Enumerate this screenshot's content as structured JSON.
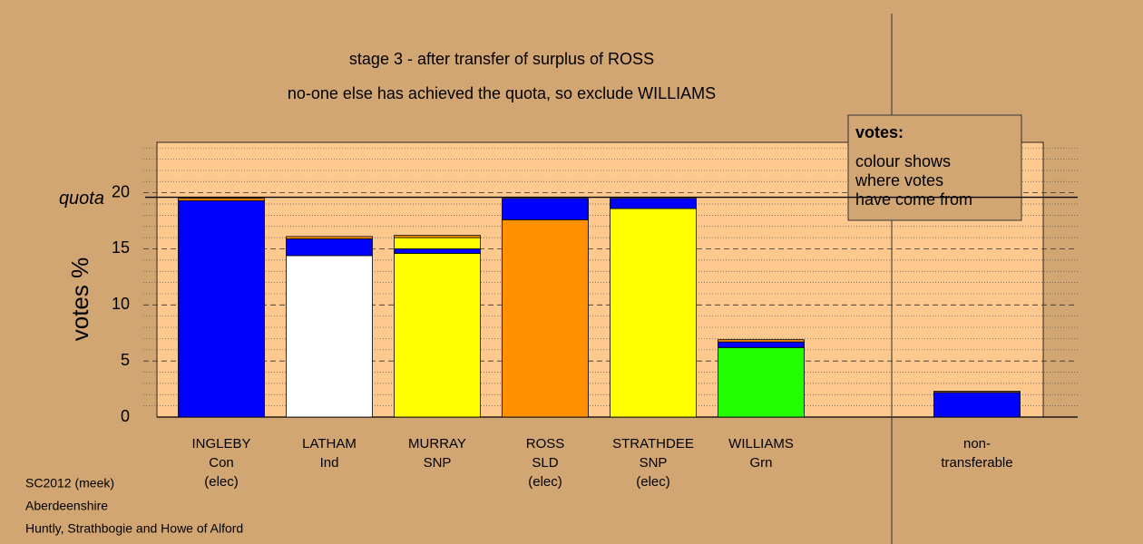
{
  "chart_data": {
    "type": "stacked_bar",
    "title": "stage 3 - after transfer of surplus of ROSS",
    "subtitle": "no-one else has achieved the quota, so exclude WILLIAMS",
    "y_label": "votes %",
    "quota_label": "quota",
    "quota": 19.6,
    "categories": [
      [
        "INGLEBY",
        "Con",
        "(elec)"
      ],
      [
        "LATHAM",
        "Ind"
      ],
      [
        "MURRAY",
        "SNP"
      ],
      [
        "ROSS",
        "SLD",
        "(elec)"
      ],
      [
        "STRATHDEE",
        "SNP",
        "(elec)"
      ],
      [
        "WILLIAMS",
        "Grn"
      ],
      [
        "non-",
        "transferable"
      ]
    ],
    "series": [
      {
        "colors": [
          "#0000ff",
          "#ffffff",
          "#ffff00",
          "#ff9000",
          "#ffff00",
          "#22ff00",
          "#0000ff"
        ],
        "values": [
          19.3,
          14.4,
          14.6,
          17.6,
          18.6,
          6.2,
          0
        ]
      },
      {
        "color": "#0000ff",
        "values": [
          0,
          1.5,
          0.4,
          1.9,
          0.9,
          0.5,
          2.2
        ]
      },
      {
        "color": "#ffff00",
        "values": [
          0,
          0,
          1.0,
          0,
          0,
          0,
          0
        ]
      },
      {
        "color": "#ff9000",
        "values": [
          0.2,
          0.2,
          0.2,
          0,
          0,
          0.2,
          0.1
        ]
      }
    ],
    "ylim": [
      0,
      24.5
    ],
    "yticks": [
      0,
      5,
      10,
      15,
      20
    ],
    "minor_yticks": [
      1,
      2,
      3,
      4,
      6,
      7,
      8,
      9,
      11,
      12,
      13,
      14,
      16,
      17,
      18,
      19,
      21,
      22,
      23,
      24
    ],
    "grid": true,
    "annotation": {
      "heading": "votes:",
      "lines": [
        "colour shows",
        "where votes",
        "have come from"
      ]
    },
    "footer": [
      "SC2012 (meek)",
      "Aberdeenshire",
      "Huntly, Strathbogie and Howe of Alford"
    ]
  }
}
